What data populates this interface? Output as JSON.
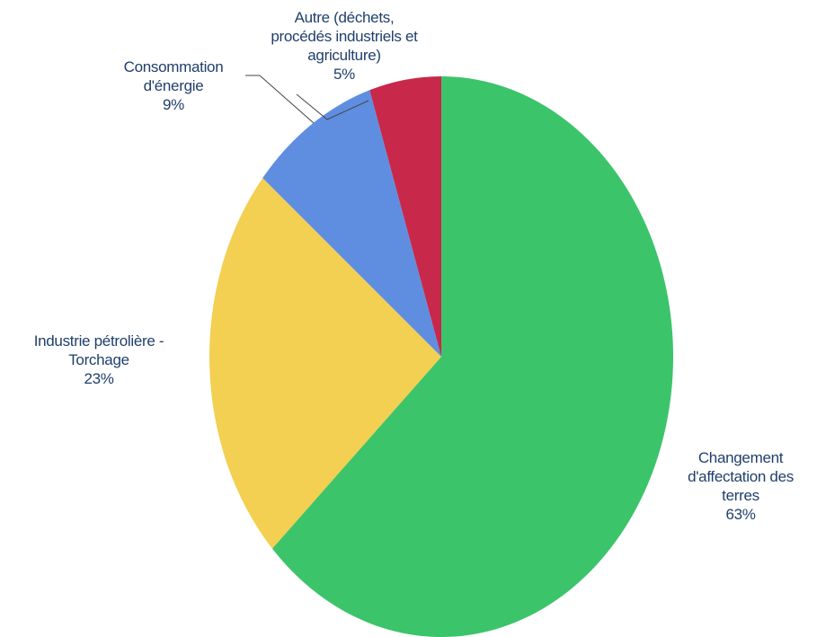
{
  "chart_data": {
    "type": "pie",
    "title": "",
    "start": "12 o'clock, clockwise",
    "slices": [
      {
        "key": "changement",
        "label_lines": [
          "Changement",
          "d'affectation des",
          "terres"
        ],
        "value": 63,
        "pct_label": "63%",
        "color": "#3cc46b"
      },
      {
        "key": "industrie",
        "label_lines": [
          "Industrie pétrolière -",
          "Torchage"
        ],
        "value": 23,
        "pct_label": "23%",
        "color": "#f3cf52"
      },
      {
        "key": "consommation",
        "label_lines": [
          "Consommation",
          "d'énergie"
        ],
        "value": 9,
        "pct_label": "9%",
        "color": "#5f8ee0"
      },
      {
        "key": "autre",
        "label_lines": [
          "Autre (déchets,",
          "procédés industriels et",
          "agriculture)"
        ],
        "value": 5,
        "pct_label": "5%",
        "color": "#c8284a"
      }
    ]
  },
  "colors": {
    "label_text": "#1f3f6b",
    "leader_line": "#444444"
  }
}
